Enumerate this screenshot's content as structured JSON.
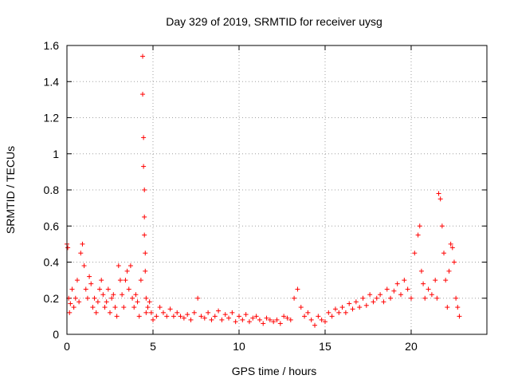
{
  "chart_data": {
    "type": "scatter",
    "title": "Day 329 of 2019, SRMTID for receiver uysg",
    "xlabel": "GPS time / hours",
    "ylabel": "SRMTID / TECUs",
    "xlim": [
      0,
      24.4
    ],
    "ylim": [
      0,
      1.6
    ],
    "xticks": [
      0,
      5,
      10,
      15,
      20
    ],
    "xtick_labels": [
      "0",
      "5",
      "10",
      "15",
      "20"
    ],
    "yticks": [
      0,
      0.2,
      0.4,
      0.6,
      0.8,
      1.0,
      1.2,
      1.4,
      1.6
    ],
    "ytick_labels": [
      "0",
      "0.2",
      "0.4",
      "0.6",
      "0.8",
      "1",
      "1.2",
      "1.4",
      "1.6"
    ],
    "grid": true,
    "marker": "+",
    "color": "#ff0000",
    "series": [
      {
        "name": "SRMTID",
        "x": [
          0.0,
          0.05,
          0.1,
          0.15,
          0.2,
          0.3,
          0.4,
          0.5,
          0.6,
          0.7,
          0.8,
          0.9,
          1.0,
          1.1,
          1.2,
          1.3,
          1.4,
          1.5,
          1.6,
          1.7,
          1.8,
          1.9,
          2.0,
          2.1,
          2.2,
          2.3,
          2.4,
          2.5,
          2.6,
          2.7,
          2.8,
          2.9,
          3.0,
          3.1,
          3.2,
          3.3,
          3.4,
          3.5,
          3.6,
          3.7,
          3.8,
          3.9,
          4.0,
          4.1,
          4.2,
          4.3,
          4.4,
          4.4,
          4.45,
          4.45,
          4.5,
          4.5,
          4.5,
          4.55,
          4.55,
          4.6,
          4.6,
          4.7,
          4.8,
          4.9,
          5.0,
          5.2,
          5.4,
          5.6,
          5.8,
          6.0,
          6.2,
          6.4,
          6.6,
          6.8,
          7.0,
          7.2,
          7.4,
          7.6,
          7.8,
          8.0,
          8.2,
          8.4,
          8.6,
          8.8,
          9.0,
          9.2,
          9.4,
          9.6,
          9.8,
          10.0,
          10.2,
          10.4,
          10.6,
          10.8,
          11.0,
          11.2,
          11.4,
          11.6,
          11.8,
          12.0,
          12.2,
          12.4,
          12.6,
          12.8,
          13.0,
          13.2,
          13.4,
          13.6,
          13.8,
          14.0,
          14.2,
          14.4,
          14.6,
          14.8,
          15.0,
          15.2,
          15.4,
          15.6,
          15.8,
          16.0,
          16.2,
          16.4,
          16.6,
          16.8,
          17.0,
          17.2,
          17.4,
          17.6,
          17.8,
          18.0,
          18.2,
          18.4,
          18.6,
          18.8,
          19.0,
          19.2,
          19.4,
          19.6,
          19.8,
          20.0,
          20.2,
          20.4,
          20.5,
          20.6,
          20.7,
          20.8,
          21.0,
          21.2,
          21.4,
          21.5,
          21.6,
          21.7,
          21.8,
          21.9,
          22.0,
          22.1,
          22.2,
          22.3,
          22.4,
          22.5,
          22.6,
          22.7,
          22.8
        ],
        "y": [
          0.5,
          0.48,
          0.2,
          0.12,
          0.17,
          0.25,
          0.15,
          0.2,
          0.3,
          0.18,
          0.45,
          0.5,
          0.38,
          0.25,
          0.2,
          0.32,
          0.28,
          0.15,
          0.2,
          0.12,
          0.18,
          0.25,
          0.3,
          0.22,
          0.15,
          0.18,
          0.25,
          0.12,
          0.2,
          0.22,
          0.15,
          0.1,
          0.38,
          0.3,
          0.22,
          0.15,
          0.3,
          0.35,
          0.25,
          0.38,
          0.2,
          0.15,
          0.22,
          0.18,
          0.1,
          0.3,
          1.54,
          1.33,
          1.09,
          0.93,
          0.8,
          0.65,
          0.55,
          0.45,
          0.35,
          0.2,
          0.12,
          0.15,
          0.18,
          0.12,
          0.08,
          0.1,
          0.15,
          0.12,
          0.1,
          0.14,
          0.1,
          0.12,
          0.1,
          0.09,
          0.11,
          0.08,
          0.12,
          0.2,
          0.1,
          0.09,
          0.12,
          0.08,
          0.1,
          0.13,
          0.08,
          0.11,
          0.09,
          0.12,
          0.07,
          0.1,
          0.08,
          0.11,
          0.07,
          0.09,
          0.1,
          0.08,
          0.06,
          0.09,
          0.08,
          0.07,
          0.08,
          0.06,
          0.1,
          0.09,
          0.08,
          0.2,
          0.25,
          0.15,
          0.1,
          0.12,
          0.08,
          0.05,
          0.1,
          0.08,
          0.07,
          0.12,
          0.1,
          0.14,
          0.12,
          0.15,
          0.12,
          0.17,
          0.14,
          0.18,
          0.15,
          0.2,
          0.16,
          0.22,
          0.18,
          0.2,
          0.22,
          0.18,
          0.25,
          0.2,
          0.24,
          0.28,
          0.22,
          0.3,
          0.25,
          0.2,
          0.45,
          0.55,
          0.6,
          0.35,
          0.28,
          0.2,
          0.25,
          0.22,
          0.3,
          0.2,
          0.78,
          0.75,
          0.6,
          0.45,
          0.3,
          0.15,
          0.35,
          0.5,
          0.48,
          0.4,
          0.2,
          0.15,
          0.1
        ]
      }
    ]
  }
}
